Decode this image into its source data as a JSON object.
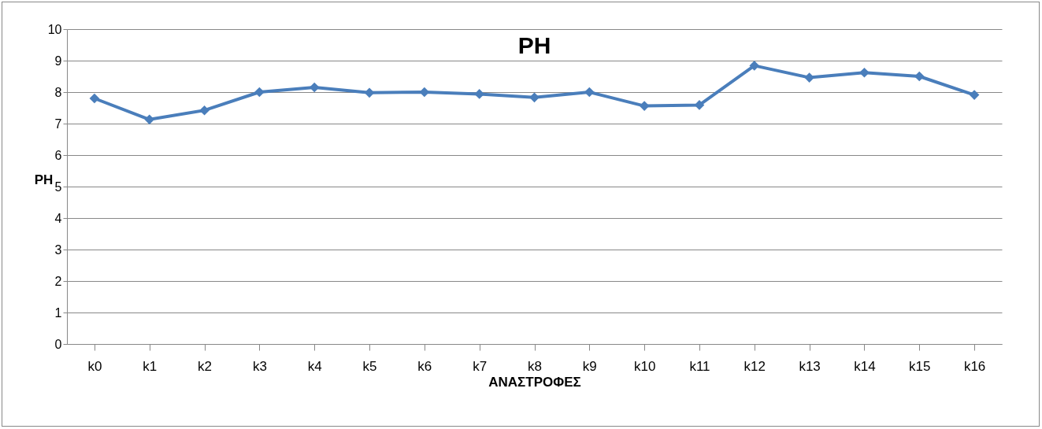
{
  "chart_data": {
    "type": "line",
    "title": "PH",
    "xlabel": "ΑΝΑΣΤΡΟΦΕΣ",
    "ylabel": "PH",
    "categories": [
      "k0",
      "k1",
      "k2",
      "k3",
      "k4",
      "k5",
      "k6",
      "k7",
      "k8",
      "k9",
      "k10",
      "k11",
      "k12",
      "k13",
      "k14",
      "k15",
      "k16"
    ],
    "series": [
      {
        "color": "#4a7ebb",
        "values": [
          7.8,
          7.13,
          7.42,
          8.0,
          8.15,
          7.98,
          8.0,
          7.94,
          7.83,
          8.0,
          7.56,
          7.59,
          8.84,
          8.46,
          8.62,
          8.5,
          7.91
        ]
      }
    ],
    "ylim": [
      0,
      10
    ],
    "yticks": [
      0,
      1,
      2,
      3,
      4,
      5,
      6,
      7,
      8,
      9,
      10
    ],
    "grid": "y",
    "marker": "diamond",
    "line_style": "solid"
  }
}
